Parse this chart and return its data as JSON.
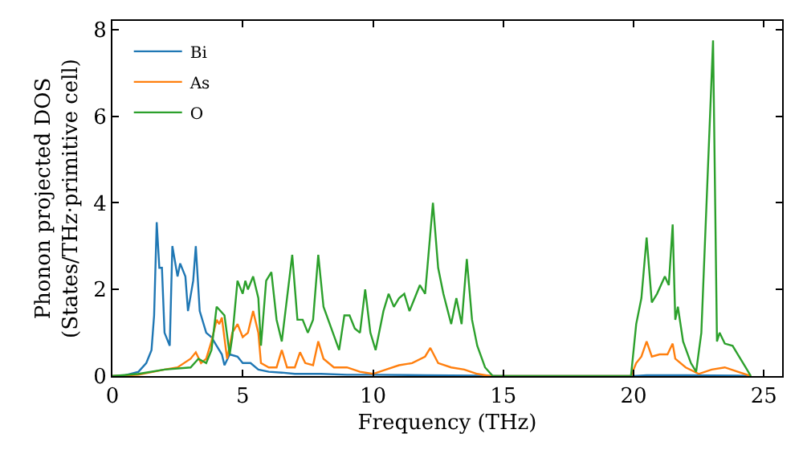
{
  "chart_data": {
    "type": "line",
    "xlabel": "Frequency (THz)",
    "ylabel": "Phonon projected DOS\n(States/THz·primitive cell)",
    "xlim": [
      0,
      25.7
    ],
    "ylim": [
      0,
      8.2
    ],
    "xticks": [
      0,
      5,
      10,
      15,
      20,
      25
    ],
    "yticks": [
      0,
      2,
      4,
      6,
      8
    ],
    "grid": false,
    "legend": "top left",
    "marker": "none",
    "line_style": "solid",
    "series": [
      {
        "name": "Bi",
        "color": "#1f77b4",
        "x": [
          0,
          0.5,
          1,
          1.3,
          1.5,
          1.6,
          1.7,
          1.8,
          1.9,
          2.0,
          2.2,
          2.3,
          2.5,
          2.6,
          2.8,
          2.9,
          3.1,
          3.2,
          3.35,
          3.6,
          3.8,
          4.0,
          4.2,
          4.3,
          4.5,
          4.8,
          5.0,
          5.3,
          5.6,
          6,
          6.5,
          7,
          8,
          9,
          10,
          12,
          14,
          15,
          20,
          20.5,
          22,
          24,
          24.5
        ],
        "values": [
          0,
          0.02,
          0.1,
          0.3,
          0.6,
          1.4,
          3.55,
          2.5,
          2.5,
          1.0,
          0.7,
          3.0,
          2.3,
          2.6,
          2.3,
          1.5,
          2.2,
          3.0,
          1.5,
          1.0,
          0.9,
          0.7,
          0.5,
          0.25,
          0.5,
          0.45,
          0.3,
          0.3,
          0.15,
          0.1,
          0.08,
          0.05,
          0.05,
          0.03,
          0.03,
          0.02,
          0.01,
          0,
          0,
          0.02,
          0.02,
          0.01,
          0
        ]
      },
      {
        "name": "As",
        "color": "#ff7f0e",
        "x": [
          0,
          1,
          2,
          2.5,
          3,
          3.2,
          3.4,
          3.6,
          3.8,
          4.0,
          4.1,
          4.2,
          4.4,
          4.6,
          4.8,
          5.0,
          5.2,
          5.4,
          5.6,
          5.7,
          6.0,
          6.3,
          6.5,
          6.7,
          7.0,
          7.2,
          7.4,
          7.7,
          7.9,
          8.1,
          8.5,
          9,
          9.5,
          10,
          10.5,
          11,
          11.5,
          12.0,
          12.2,
          12.5,
          13,
          13.5,
          14,
          14.5,
          19.9,
          20.1,
          20.3,
          20.5,
          20.7,
          21,
          21.3,
          21.5,
          21.6,
          22,
          22.5,
          23,
          23.5,
          24,
          24.5
        ],
        "values": [
          0,
          0.03,
          0.15,
          0.2,
          0.4,
          0.55,
          0.3,
          0.4,
          0.8,
          1.3,
          1.2,
          1.35,
          0.4,
          1.0,
          1.2,
          0.9,
          1.0,
          1.5,
          1.0,
          0.3,
          0.2,
          0.2,
          0.6,
          0.2,
          0.2,
          0.55,
          0.3,
          0.25,
          0.8,
          0.4,
          0.2,
          0.2,
          0.1,
          0.05,
          0.15,
          0.25,
          0.3,
          0.45,
          0.65,
          0.3,
          0.2,
          0.15,
          0.05,
          0,
          0,
          0.3,
          0.45,
          0.8,
          0.45,
          0.5,
          0.5,
          0.75,
          0.4,
          0.2,
          0.05,
          0.15,
          0.2,
          0.1,
          0
        ]
      },
      {
        "name": "O",
        "color": "#2ca02c",
        "x": [
          0,
          1,
          2,
          3,
          3.3,
          3.6,
          3.8,
          4.0,
          4.3,
          4.5,
          4.6,
          4.8,
          5.0,
          5.1,
          5.2,
          5.4,
          5.6,
          5.7,
          5.9,
          6.1,
          6.3,
          6.5,
          6.9,
          7.1,
          7.3,
          7.5,
          7.7,
          7.9,
          8.1,
          8.4,
          8.7,
          8.9,
          9.1,
          9.3,
          9.5,
          9.7,
          9.9,
          10.1,
          10.4,
          10.6,
          10.8,
          11.0,
          11.2,
          11.4,
          11.6,
          11.8,
          12.0,
          12.3,
          12.5,
          12.7,
          13.0,
          13.2,
          13.4,
          13.6,
          13.8,
          14.0,
          14.3,
          14.6,
          15,
          19.9,
          20.1,
          20.3,
          20.5,
          20.7,
          20.9,
          21.2,
          21.35,
          21.5,
          21.6,
          21.7,
          21.9,
          22.2,
          22.4,
          22.6,
          22.9,
          23.05,
          23.2,
          23.3,
          23.5,
          23.8,
          24.0,
          24.3,
          24.5
        ],
        "values": [
          0,
          0.05,
          0.15,
          0.2,
          0.4,
          0.3,
          0.6,
          1.6,
          1.4,
          0.5,
          0.9,
          2.2,
          1.9,
          2.2,
          2.0,
          2.3,
          1.8,
          0.7,
          2.2,
          2.4,
          1.3,
          0.8,
          2.8,
          1.3,
          1.3,
          1.0,
          1.3,
          2.8,
          1.6,
          1.1,
          0.6,
          1.4,
          1.4,
          1.1,
          1.0,
          2.0,
          1.0,
          0.6,
          1.5,
          1.9,
          1.6,
          1.8,
          1.9,
          1.5,
          1.8,
          2.1,
          1.9,
          4.0,
          2.5,
          1.9,
          1.2,
          1.8,
          1.2,
          2.7,
          1.3,
          0.7,
          0.2,
          0,
          0,
          0,
          1.2,
          1.8,
          3.2,
          1.7,
          1.9,
          2.3,
          2.1,
          3.5,
          1.3,
          1.6,
          0.8,
          0.3,
          0.1,
          1.0,
          5.5,
          7.75,
          0.8,
          1.0,
          0.75,
          0.7,
          0.5,
          0.2,
          0
        ]
      }
    ]
  }
}
